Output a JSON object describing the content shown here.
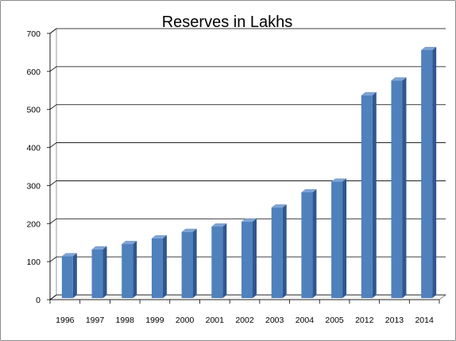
{
  "chart_data": {
    "type": "bar",
    "title": "Reserves in Lakhs",
    "xlabel": "",
    "ylabel": "",
    "categories": [
      "1996",
      "1997",
      "1998",
      "1999",
      "2000",
      "2001",
      "2002",
      "2003",
      "2004",
      "2005",
      "2012",
      "2013",
      "2014"
    ],
    "values": [
      110,
      128,
      142,
      157,
      174,
      188,
      201,
      238,
      278,
      306,
      533,
      572,
      652
    ],
    "ylim": [
      0,
      700
    ],
    "yticks": [
      0,
      100,
      200,
      300,
      400,
      500,
      600,
      700
    ],
    "grid": true,
    "legend": "none",
    "style": "3d-column",
    "colors": {
      "bar_front": "#4f81bd",
      "bar_side": "#2f5790",
      "bar_top": "#7ea3d3",
      "gridline": "#000000",
      "wall": "#ffffff"
    }
  }
}
